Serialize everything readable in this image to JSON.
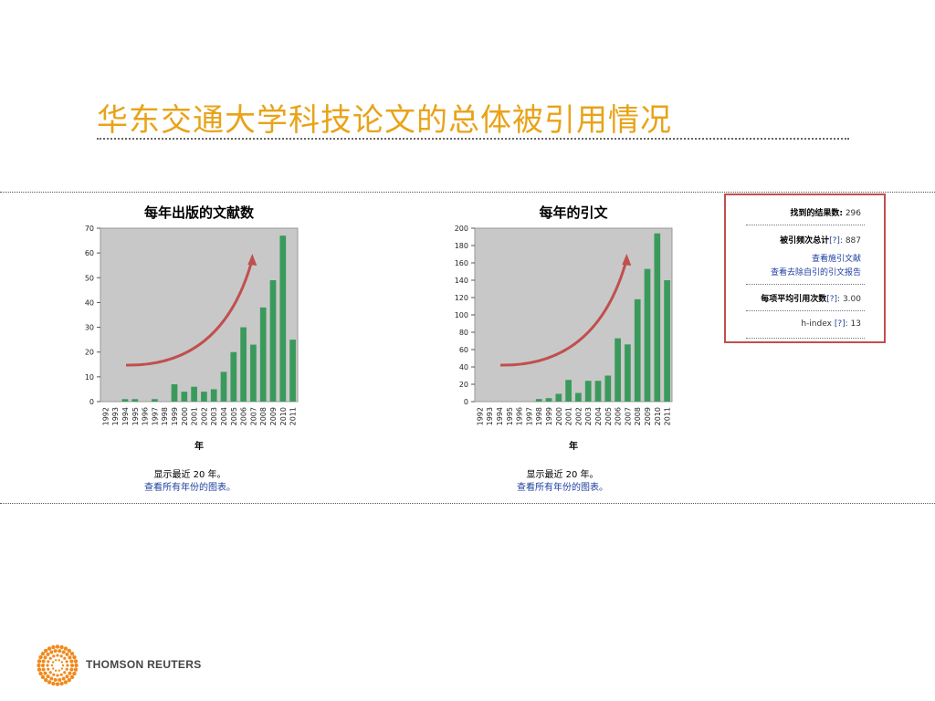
{
  "slide": {
    "title": "华东交通大学科技论文的总体被引用情况"
  },
  "chart_data": [
    {
      "type": "bar",
      "title": "每年出版的文献数",
      "xlabel": "年",
      "ylabel": "",
      "categories": [
        "1992",
        "1993",
        "1994",
        "1995",
        "1996",
        "1997",
        "1998",
        "1999",
        "2000",
        "2001",
        "2002",
        "2003",
        "2004",
        "2005",
        "2006",
        "2007",
        "2008",
        "2009",
        "2010",
        "2011"
      ],
      "values": [
        0,
        0,
        1,
        1,
        0,
        1,
        0,
        7,
        4,
        6,
        4,
        5,
        12,
        20,
        30,
        23,
        38,
        49,
        67,
        25
      ],
      "ylim": [
        0,
        70
      ],
      "yticks": [
        0,
        10,
        20,
        30,
        40,
        50,
        60,
        70
      ],
      "grid": false,
      "bar_color": "#3a9a5c",
      "plot_bg": "#c8c8c8",
      "trend_arrow_color": "#c0504d"
    },
    {
      "type": "bar",
      "title": "每年的引文",
      "xlabel": "年",
      "ylabel": "",
      "categories": [
        "1992",
        "1993",
        "1994",
        "1995",
        "1996",
        "1997",
        "1998",
        "1999",
        "2000",
        "2001",
        "2002",
        "2003",
        "2004",
        "2005",
        "2006",
        "2007",
        "2008",
        "2009",
        "2010",
        "2011"
      ],
      "values": [
        0,
        0,
        0,
        0,
        0,
        0,
        3,
        4,
        9,
        25,
        10,
        24,
        24,
        30,
        73,
        66,
        118,
        153,
        194,
        140
      ],
      "ylim": [
        0,
        200
      ],
      "yticks": [
        0,
        20,
        40,
        60,
        80,
        100,
        120,
        140,
        160,
        180,
        200
      ],
      "grid": false,
      "bar_color": "#3a9a5c",
      "plot_bg": "#c8c8c8",
      "trend_arrow_color": "#c0504d"
    }
  ],
  "captions": [
    {
      "line1": "显示最近  20 年。",
      "link": "查看所有年份的图表。"
    },
    {
      "line1": "显示最近  20 年。",
      "link": "查看所有年份的图表。"
    }
  ],
  "summary": {
    "results_label": "找到的结果数:",
    "results_value": "296",
    "citations_label": "被引频次总计",
    "help": "[?]",
    "colon": ":",
    "citations_value": "887",
    "view_citing": "查看施引文献",
    "view_no_self": "查看去除自引的引文报告",
    "avg_label": "每项平均引用次数",
    "avg_value": "3.00",
    "hindex_label": "h-index",
    "hindex_value": "13"
  },
  "brand": {
    "name": "THOMSON REUTERS",
    "color": "#f08a1c"
  }
}
